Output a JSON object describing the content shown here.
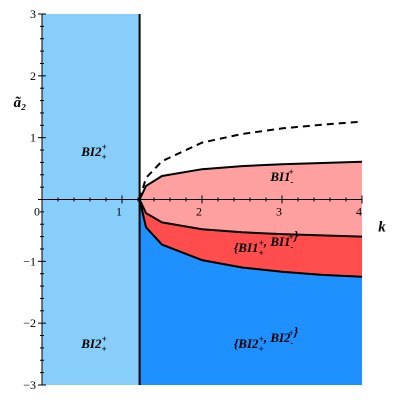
{
  "chart_data": {
    "type": "area",
    "xlabel": "k",
    "ylabel": "ã₂",
    "xlim": [
      0,
      4
    ],
    "ylim": [
      -3,
      3
    ],
    "x_ticks": [
      "0",
      "1",
      "2",
      "3",
      "4"
    ],
    "y_ticks": [
      "-3",
      "-2",
      "-1",
      "0",
      "1",
      "2",
      "3"
    ],
    "grid": false,
    "colors": {
      "left_strip": "#87CEFA",
      "lower_right": "#1E90FF",
      "middle_band": "#FF4C4C",
      "upper_band": "#FFA0A0",
      "boundary": "#000000"
    },
    "vertical_boundary_k": 1.22,
    "curves": [
      {
        "label": "dashed upper",
        "style": "dashed",
        "x": [
          1.22,
          1.3,
          1.5,
          2.0,
          2.5,
          3.0,
          3.5,
          4.0
        ],
        "y": [
          0.0,
          0.35,
          0.62,
          0.92,
          1.06,
          1.15,
          1.21,
          1.26
        ]
      },
      {
        "label": "upper boundary",
        "style": "solid",
        "x": [
          1.22,
          1.3,
          1.5,
          2.0,
          2.5,
          3.0,
          3.5,
          4.0
        ],
        "y": [
          0.0,
          0.22,
          0.38,
          0.49,
          0.54,
          0.57,
          0.59,
          0.61
        ]
      },
      {
        "label": "middle boundary",
        "style": "solid",
        "x": [
          1.22,
          1.3,
          1.5,
          2.0,
          2.5,
          3.0,
          3.5,
          4.0
        ],
        "y": [
          0.0,
          -0.22,
          -0.37,
          -0.48,
          -0.53,
          -0.56,
          -0.58,
          -0.6
        ]
      },
      {
        "label": "lower boundary",
        "style": "solid",
        "x": [
          1.22,
          1.3,
          1.5,
          2.0,
          2.5,
          3.0,
          3.5,
          4.0
        ],
        "y": [
          0.0,
          -0.45,
          -0.73,
          -0.98,
          -1.1,
          -1.17,
          -1.22,
          -1.25
        ]
      }
    ],
    "region_labels": [
      {
        "main": "BI2",
        "sub": "+",
        "sup": "+",
        "at": [
          0.65,
          0.7
        ]
      },
      {
        "main": "BI2",
        "sub": "+",
        "sup": "+",
        "at": [
          0.65,
          -2.4
        ]
      },
      {
        "main": "BI1",
        "sub": "-",
        "sup": "+",
        "at": [
          3.0,
          0.3
        ]
      },
      {
        "pair": true,
        "main1": "BI1",
        "sub1": "+",
        "sup1": "+",
        "main2": "BI1",
        "sub2": "-",
        "sup2": "+",
        "at": [
          2.8,
          -0.85
        ]
      },
      {
        "pair": true,
        "main1": "BI2",
        "sub1": "+",
        "sup1": "+",
        "main2": "BI2",
        "sub2": "-",
        "sup2": "+",
        "at": [
          2.8,
          -2.4
        ]
      }
    ]
  }
}
